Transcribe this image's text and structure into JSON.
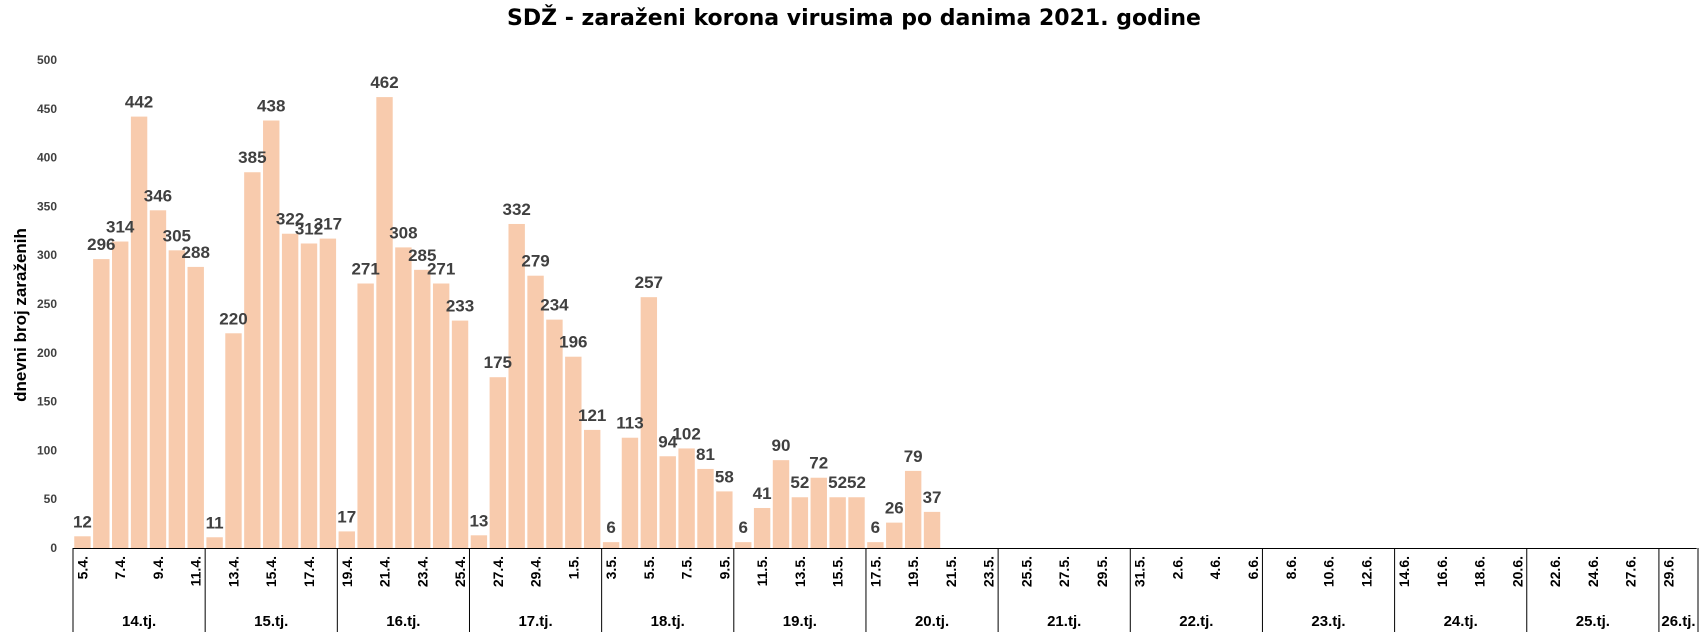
{
  "chart_data": {
    "type": "bar",
    "title": "SDŽ - zaraženi korona virusima po danima 2021. godine",
    "ylabel": "dnevni broj zaraženih",
    "xlabel": "",
    "ylim": [
      0,
      500
    ],
    "yticks": [
      0,
      50,
      100,
      150,
      200,
      250,
      300,
      350,
      400,
      450,
      500
    ],
    "grid": false,
    "bar_color": "#F8CBAD",
    "days": [
      {
        "label": "5.4.",
        "value": 12
      },
      {
        "label": "",
        "value": 296
      },
      {
        "label": "7.4.",
        "value": 314
      },
      {
        "label": "",
        "value": 442
      },
      {
        "label": "9.4.",
        "value": 346
      },
      {
        "label": "",
        "value": 305
      },
      {
        "label": "11.4.",
        "value": 288
      },
      {
        "label": "",
        "value": 11
      },
      {
        "label": "13.4.",
        "value": 220
      },
      {
        "label": "",
        "value": 385
      },
      {
        "label": "15.4.",
        "value": 438
      },
      {
        "label": "",
        "value": 322
      },
      {
        "label": "17.4.",
        "value": 312
      },
      {
        "label": "",
        "value": 317
      },
      {
        "label": "19.4.",
        "value": 17
      },
      {
        "label": "",
        "value": 271
      },
      {
        "label": "21.4.",
        "value": 462
      },
      {
        "label": "",
        "value": 308
      },
      {
        "label": "23.4.",
        "value": 285
      },
      {
        "label": "",
        "value": 271
      },
      {
        "label": "25.4.",
        "value": 233
      },
      {
        "label": "",
        "value": 13
      },
      {
        "label": "27.4.",
        "value": 175
      },
      {
        "label": "",
        "value": 332
      },
      {
        "label": "29.4.",
        "value": 279
      },
      {
        "label": "",
        "value": 234
      },
      {
        "label": "1.5.",
        "value": 196
      },
      {
        "label": "",
        "value": 121
      },
      {
        "label": "3.5.",
        "value": 6
      },
      {
        "label": "",
        "value": 113
      },
      {
        "label": "5.5.",
        "value": 257
      },
      {
        "label": "",
        "value": 94
      },
      {
        "label": "7.5.",
        "value": 102
      },
      {
        "label": "",
        "value": 81
      },
      {
        "label": "9.5.",
        "value": 58
      },
      {
        "label": "",
        "value": 6
      },
      {
        "label": "11.5.",
        "value": 41
      },
      {
        "label": "",
        "value": 90
      },
      {
        "label": "13.5.",
        "value": 52
      },
      {
        "label": "",
        "value": 72
      },
      {
        "label": "15.5.",
        "value": 52
      },
      {
        "label": "",
        "value": 52
      },
      {
        "label": "17.5.",
        "value": 6
      },
      {
        "label": "",
        "value": 26
      },
      {
        "label": "19.5.",
        "value": 79
      },
      {
        "label": "",
        "value": 37
      },
      {
        "label": "21.5.",
        "value": null
      },
      {
        "label": "",
        "value": null
      },
      {
        "label": "23.5.",
        "value": null
      },
      {
        "label": "",
        "value": null
      },
      {
        "label": "25.5.",
        "value": null
      },
      {
        "label": "",
        "value": null
      },
      {
        "label": "27.5.",
        "value": null
      },
      {
        "label": "",
        "value": null
      },
      {
        "label": "29.5.",
        "value": null
      },
      {
        "label": "",
        "value": null
      },
      {
        "label": "31.5.",
        "value": null
      },
      {
        "label": "",
        "value": null
      },
      {
        "label": "2.6.",
        "value": null
      },
      {
        "label": "",
        "value": null
      },
      {
        "label": "4.6.",
        "value": null
      },
      {
        "label": "",
        "value": null
      },
      {
        "label": "6.6.",
        "value": null
      },
      {
        "label": "",
        "value": null
      },
      {
        "label": "8.6.",
        "value": null
      },
      {
        "label": "",
        "value": null
      },
      {
        "label": "10.6.",
        "value": null
      },
      {
        "label": "",
        "value": null
      },
      {
        "label": "12.6.",
        "value": null
      },
      {
        "label": "",
        "value": null
      },
      {
        "label": "14.6.",
        "value": null
      },
      {
        "label": "",
        "value": null
      },
      {
        "label": "16.6.",
        "value": null
      },
      {
        "label": "",
        "value": null
      },
      {
        "label": "18.6.",
        "value": null
      },
      {
        "label": "",
        "value": null
      },
      {
        "label": "20.6.",
        "value": null
      },
      {
        "label": "",
        "value": null
      },
      {
        "label": "22.6.",
        "value": null
      },
      {
        "label": "",
        "value": null
      },
      {
        "label": "24.6.",
        "value": null
      },
      {
        "label": "",
        "value": null
      },
      {
        "label": "27.6.",
        "value": null
      },
      {
        "label": "",
        "value": null
      },
      {
        "label": "29.6.",
        "value": null
      },
      {
        "label": "",
        "value": null
      }
    ],
    "weeks": [
      "14.tj.",
      "15.tj.",
      "16.tj.",
      "17.tj.",
      "18.tj.",
      "19.tj.",
      "20.tj.",
      "21.tj.",
      "22.tj.",
      "23.tj.",
      "24.tj.",
      "25.tj.",
      "26.tj."
    ]
  }
}
